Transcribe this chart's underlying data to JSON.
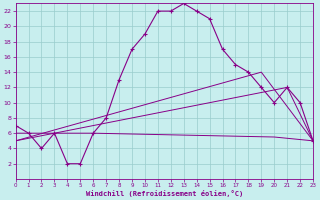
{
  "xlabel": "Windchill (Refroidissement éolien,°C)",
  "bg_color": "#c8eeee",
  "grid_color": "#99cccc",
  "line_color": "#880088",
  "xmin": 0,
  "xmax": 23,
  "ymin": 0,
  "ymax": 23,
  "yticks": [
    2,
    4,
    6,
    8,
    10,
    12,
    14,
    16,
    18,
    20,
    22
  ],
  "xticks": [
    0,
    1,
    2,
    3,
    4,
    5,
    6,
    7,
    8,
    9,
    10,
    11,
    12,
    13,
    14,
    15,
    16,
    17,
    18,
    19,
    20,
    21,
    22,
    23
  ],
  "line1_x": [
    0,
    1,
    2,
    3,
    4,
    5,
    6,
    7,
    8,
    9,
    10,
    11,
    12,
    13,
    14,
    15,
    16,
    17,
    18,
    19,
    20,
    21,
    22,
    23
  ],
  "line1_y": [
    7,
    6,
    4,
    6,
    2,
    2,
    6,
    8,
    13,
    17,
    19,
    22,
    22,
    23,
    22,
    21,
    17,
    15,
    14,
    12,
    10,
    12,
    10,
    5
  ],
  "line2_x": [
    0,
    6,
    20,
    23
  ],
  "line2_y": [
    6,
    6,
    5.5,
    5
  ],
  "line3_x": [
    0,
    19,
    23
  ],
  "line3_y": [
    5,
    14,
    5
  ],
  "line4_x": [
    0,
    21,
    23
  ],
  "line4_y": [
    5,
    12,
    5
  ]
}
